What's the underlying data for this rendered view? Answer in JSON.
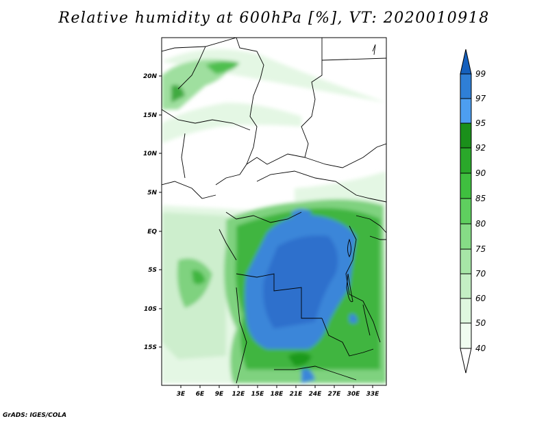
{
  "title": "Relative humidity at 600hPa [%], VT: 2020010918",
  "footer": "GrADS: IGES/COLA",
  "map": {
    "lat_labels": [
      "20N",
      "15N",
      "10N",
      "5N",
      "EQ",
      "5S",
      "10S",
      "15S"
    ],
    "lon_labels": [
      "3E",
      "6E",
      "9E",
      "12E",
      "15E",
      "18E",
      "21E",
      "24E",
      "27E",
      "30E",
      "33E"
    ]
  },
  "colorbar": {
    "levels": [
      "99",
      "97",
      "95",
      "92",
      "90",
      "85",
      "80",
      "75",
      "70",
      "60",
      "50",
      "40"
    ],
    "colors": [
      "#1560bd",
      "#2f7fd6",
      "#4d9ef0",
      "#1a8f1a",
      "#2aa82a",
      "#3fbf3f",
      "#5fcf5f",
      "#86dc86",
      "#a7e6a7",
      "#c4efc4",
      "#dff7df",
      "#f0fcf0"
    ]
  }
}
